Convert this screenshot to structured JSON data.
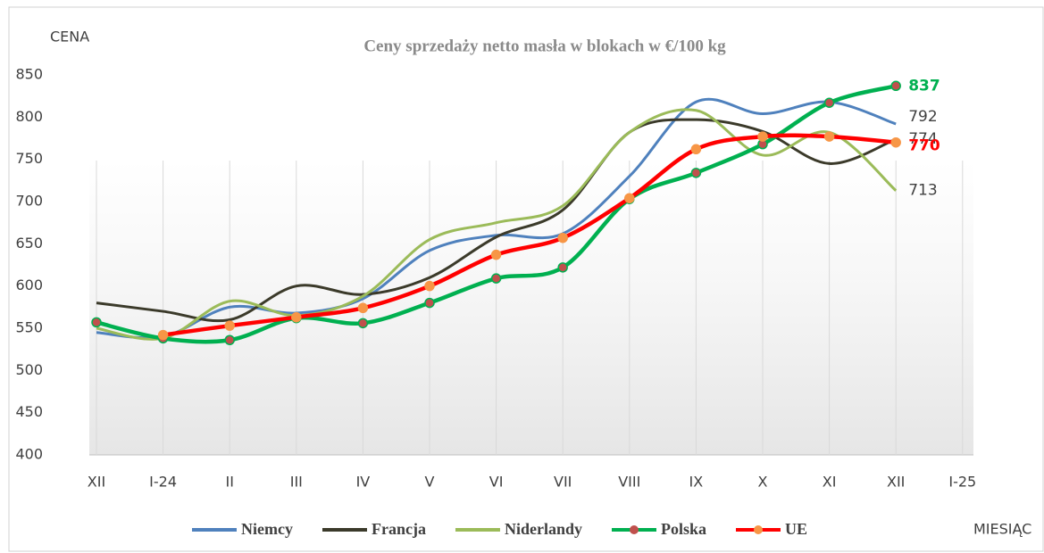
{
  "chart_data": {
    "type": "line",
    "title": "Ceny sprzedaży  netto masła w blokach  w €/100 kg",
    "y_label": "CENA",
    "x_label": "MIESIĄC",
    "categories": [
      "XII",
      "I-24",
      "II",
      "III",
      "IV",
      "V",
      "VI",
      "VII",
      "VIII",
      "IX",
      "X",
      "XI",
      "XII",
      "I-25"
    ],
    "ylim": [
      400,
      850
    ],
    "yticks": [
      400,
      450,
      500,
      550,
      600,
      650,
      700,
      750,
      800,
      850
    ],
    "grid": "vertical",
    "series": [
      {
        "name": "Niemcy",
        "color": "#4f81bd",
        "values": [
          545,
          540,
          575,
          568,
          585,
          642,
          660,
          662,
          730,
          818,
          804,
          818,
          792,
          null
        ]
      },
      {
        "name": "Francja",
        "color": "#3b3a2a",
        "values": [
          580,
          570,
          560,
          600,
          590,
          610,
          658,
          690,
          782,
          797,
          783,
          745,
          774,
          null
        ]
      },
      {
        "name": "Niderlandy",
        "color": "#9bbb59",
        "values": [
          550,
          538,
          582,
          565,
          588,
          655,
          675,
          695,
          782,
          808,
          755,
          782,
          713,
          null
        ]
      },
      {
        "name": "Polska",
        "color": "#00b050",
        "marker": true,
        "marker_color": "#c0504d",
        "values": [
          557,
          538,
          536,
          562,
          556,
          580,
          609,
          622,
          703,
          734,
          768,
          817,
          837,
          null
        ]
      },
      {
        "name": "UE",
        "color": "#ff0000",
        "marker": true,
        "marker_color": "#f79646",
        "values": [
          null,
          542,
          553,
          563,
          574,
          600,
          637,
          657,
          704,
          762,
          777,
          777,
          770,
          null
        ]
      }
    ]
  }
}
